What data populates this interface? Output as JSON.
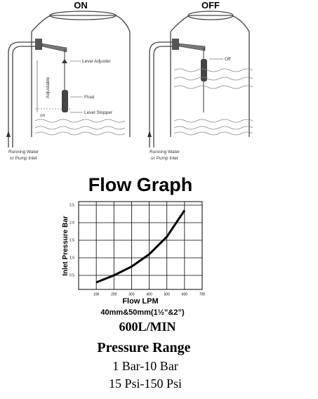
{
  "diagram": {
    "left": {
      "title": "ON",
      "labels": [
        "Level Adjuster",
        "Adjustable",
        "Float",
        "on",
        "Level Stopper"
      ],
      "inlet_lines": [
        "Running Water",
        "or Pump Inlet"
      ]
    },
    "right": {
      "title": "OFF",
      "labels": [
        "Off"
      ],
      "inlet_lines": [
        "Running Water",
        "or Pump Inlet"
      ]
    }
  },
  "chart_data": {
    "type": "line",
    "title": "Flow Graph",
    "x_label": "Flow LPM",
    "y_label": "Inlet Pressure Bar",
    "x": [
      100,
      200,
      300,
      400,
      500,
      600
    ],
    "values": [
      0.3,
      0.5,
      0.75,
      1.1,
      1.6,
      2.35
    ],
    "color": "#000000",
    "xlim": [
      0,
      700
    ],
    "xticks": [
      100,
      200,
      300,
      400,
      500,
      600,
      700
    ],
    "ylim": [
      0.1,
      2.6
    ],
    "yticks": [
      0.5,
      {
        "value": 1,
        "label": "1.0"
      },
      1.5,
      {
        "value": 2,
        "label": "2.0"
      },
      2.5
    ],
    "grid": true
  },
  "specs": {
    "size": "40mm&50mm(1½”&2”)",
    "flow": "600L/MIN",
    "pressure_title": "Pressure Range",
    "bar_range": "1 Bar-10 Bar",
    "psi_range": "15 Psi-150 Psi"
  }
}
